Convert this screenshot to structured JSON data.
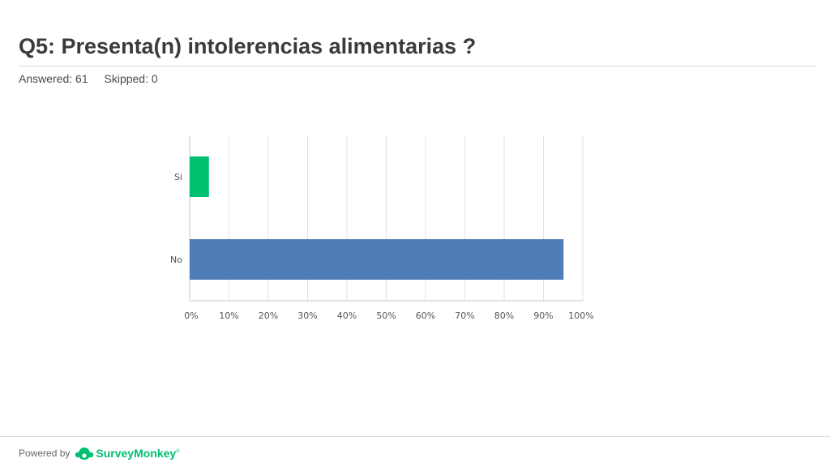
{
  "question": {
    "title": "Q5: Presenta(n) intolerencias alimentarias ?",
    "answered_label": "Answered: 61",
    "skipped_label": "Skipped: 0"
  },
  "footer": {
    "powered_by": "Powered by",
    "brand": "SurveyMonkey",
    "brand_mark": "®",
    "brand_color": "#00bf6f",
    "brand_icon": "survey-monkey-logo-icon"
  },
  "chart_data": {
    "type": "bar",
    "orientation": "horizontal",
    "categories": [
      "Si",
      "No"
    ],
    "values": [
      4.9,
      95.1
    ],
    "colors": [
      "#00bf6f",
      "#4f7db6"
    ],
    "xlim": [
      0,
      100
    ],
    "xticks": [
      "0%",
      "10%",
      "20%",
      "30%",
      "40%",
      "50%",
      "60%",
      "70%",
      "80%",
      "90%",
      "100%"
    ],
    "grid": true,
    "xlabel": "",
    "ylabel": ""
  }
}
